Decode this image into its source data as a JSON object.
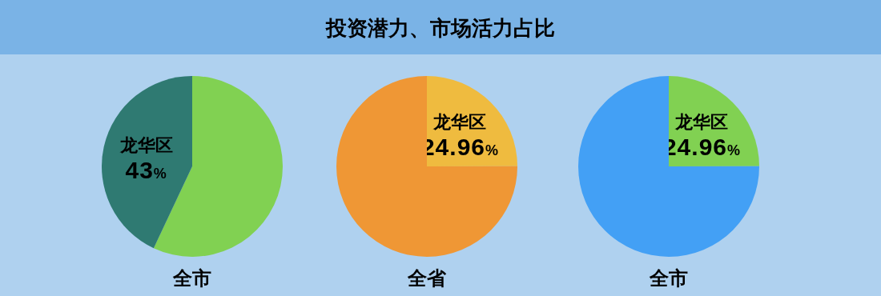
{
  "chart_data": [
    {
      "type": "pie",
      "xlabel": "全市",
      "categories": [
        null,
        "龙华区"
      ],
      "values": [
        57,
        43
      ],
      "colors": [
        "#81d152",
        "#2f7a72"
      ],
      "value_labels": [
        null,
        "43%"
      ]
    },
    {
      "type": "pie",
      "title": "投资潜力、市场活力占比",
      "xlabel": "全省",
      "categories": [
        "龙华区",
        null
      ],
      "values": [
        24.96,
        75.04
      ],
      "colors": [
        "#efbb3f",
        "#ef9735"
      ],
      "value_labels": [
        "24.96%",
        null
      ]
    },
    {
      "type": "pie",
      "xlabel": "全市",
      "categories": [
        "龙华区",
        null
      ],
      "values": [
        24.96,
        75.04
      ],
      "colors": [
        "#81d152",
        "#43a0f5"
      ],
      "value_labels": [
        "24.96%",
        null
      ]
    }
  ]
}
